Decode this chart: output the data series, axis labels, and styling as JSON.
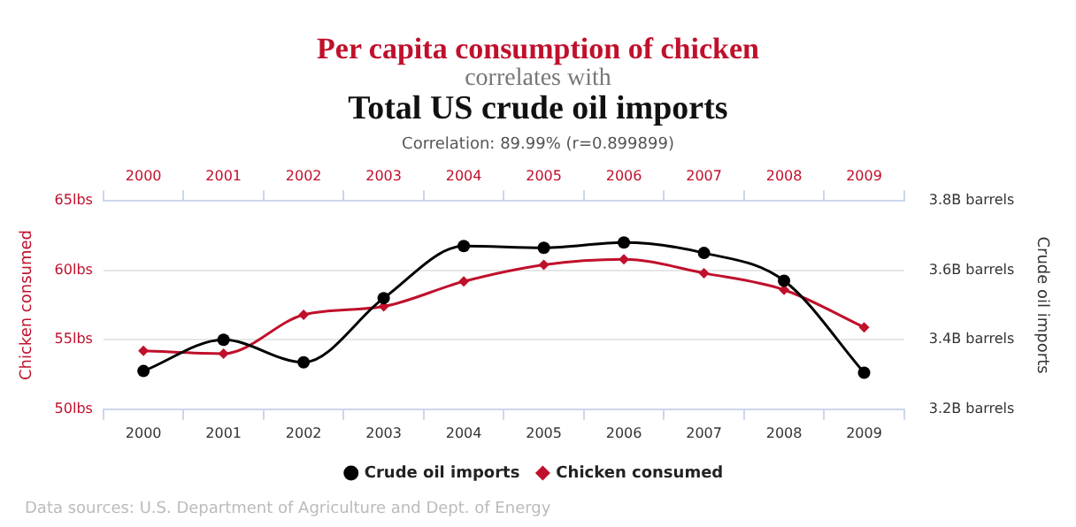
{
  "chart_data": {
    "type": "line",
    "title": "Per capita consumption of chicken",
    "subtitle": "correlates with",
    "annotations": [
      "Total US crude oil imports",
      "Correlation: 89.99% (r=0.899899)",
      "Data sources: U.S. Department of Agriculture and Dept. of Energy"
    ],
    "ylabel": "Chicken consumed",
    "y2label": "Crude oil imports",
    "categories": [
      "2000",
      "2001",
      "2002",
      "2003",
      "2004",
      "2005",
      "2006",
      "2007",
      "2008",
      "2009"
    ],
    "series": [
      {
        "name": "Crude oil imports",
        "color": "#000000",
        "axis": "y2",
        "marker": "circle",
        "values": [
          3.31,
          3.4,
          3.335,
          3.52,
          3.67,
          3.665,
          3.68,
          3.65,
          3.57,
          3.305
        ]
      },
      {
        "name": "Chicken consumed",
        "color": "#c0102c",
        "axis": "y",
        "marker": "diamond",
        "values": [
          54.2,
          54.0,
          56.8,
          57.4,
          59.2,
          60.4,
          60.8,
          59.8,
          58.6,
          55.9
        ]
      }
    ],
    "ylim": [
      50,
      65
    ],
    "yticks": [
      {
        "value": 50,
        "label": "50lbs"
      },
      {
        "value": 55,
        "label": "55lbs"
      },
      {
        "value": 60,
        "label": "60lbs"
      },
      {
        "value": 65,
        "label": "65lbs"
      }
    ],
    "y2lim": [
      3.2,
      3.8
    ],
    "y2ticks": [
      {
        "value": 3.2,
        "label": "3.2B barrels"
      },
      {
        "value": 3.4,
        "label": "3.4B barrels"
      },
      {
        "value": 3.6,
        "label": "3.6B barrels"
      },
      {
        "value": 3.8,
        "label": "3.8B barrels"
      }
    ],
    "grid": "y",
    "legend": "bottom"
  }
}
